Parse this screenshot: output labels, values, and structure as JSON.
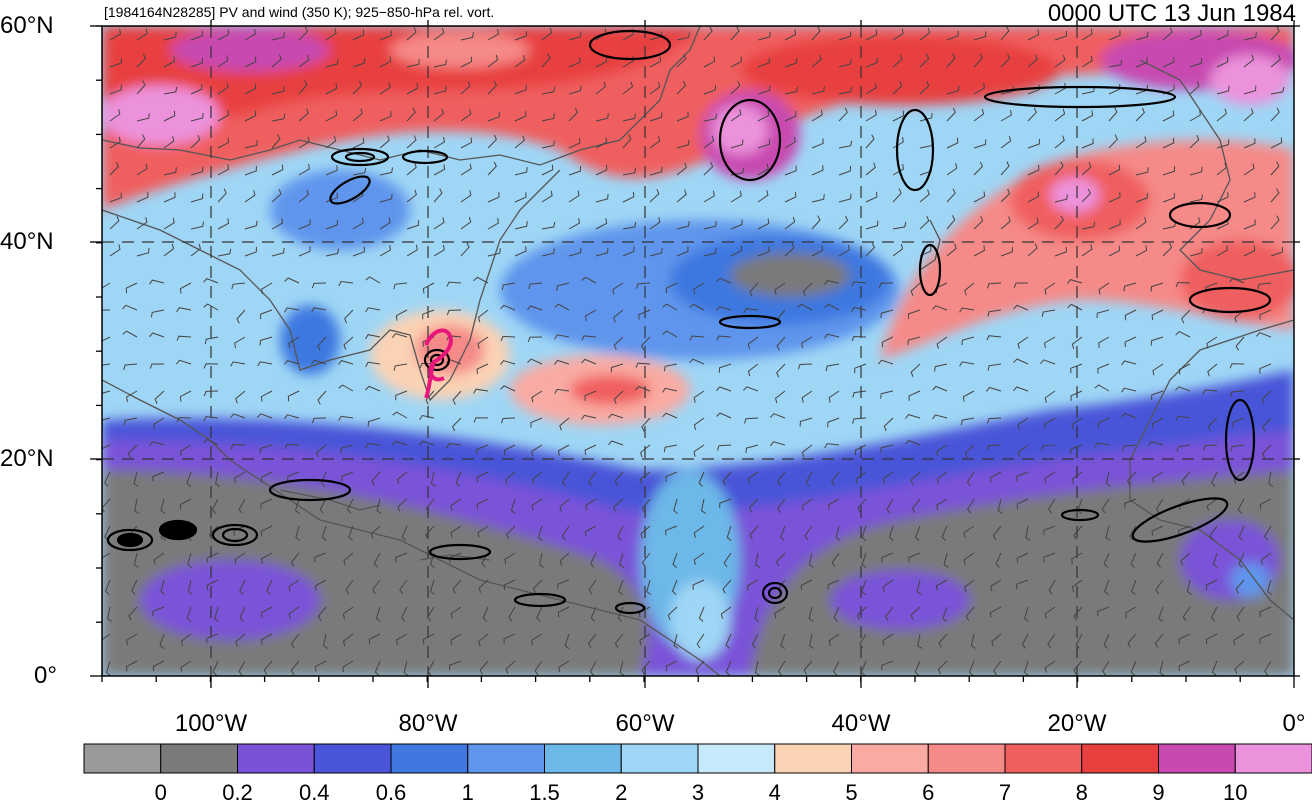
{
  "header": {
    "left_title": "[1984164N28285] PV and wind (350 K); 925−850-hPa rel. vort.",
    "right_title": "0000 UTC 13 Jun 1984"
  },
  "map": {
    "lat_labels": [
      "60°N",
      "40°N",
      "20°N",
      "0°"
    ],
    "lon_labels": [
      "100°W",
      "80°W",
      "60°W",
      "40°W",
      "20°W",
      "0°"
    ],
    "storm_marker_color": "#e8157a",
    "contour_color": "#000000",
    "coast_color": "#555555",
    "grid_style": "dashed"
  },
  "colorbar": {
    "colors": [
      "#9a9a9a",
      "#7a7a7a",
      "#7a52d8",
      "#4a54d8",
      "#3e78e0",
      "#5f95ec",
      "#6cb8e8",
      "#9fd6f5",
      "#c7eafa",
      "#fbd2b4",
      "#f9aaa2",
      "#f58a88",
      "#f05e5e",
      "#e8403f",
      "#c84ab0",
      "#ec92dc"
    ],
    "labels": [
      "0",
      "0.2",
      "0.4",
      "0.6",
      "1",
      "1.5",
      "2",
      "3",
      "4",
      "5",
      "6",
      "7",
      "8",
      "9",
      "10"
    ]
  }
}
